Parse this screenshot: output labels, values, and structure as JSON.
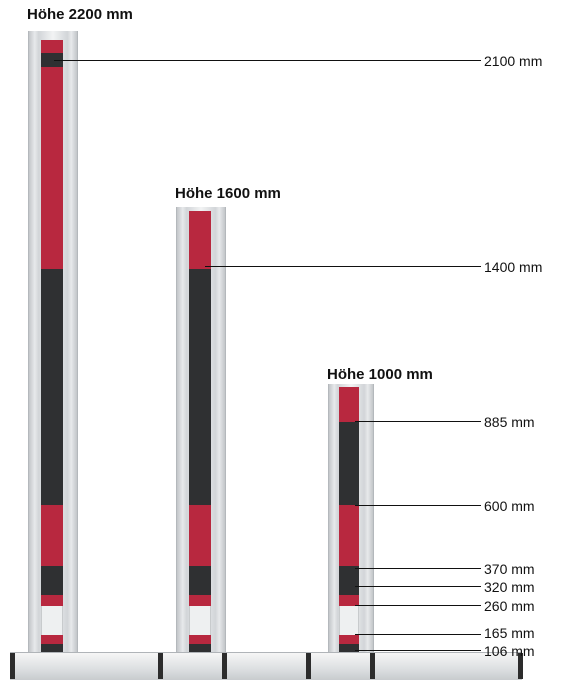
{
  "columns": [
    {
      "title": "Höhe 2200 mm"
    },
    {
      "title": "Höhe 1600 mm"
    },
    {
      "title": "Höhe 1000 mm"
    }
  ],
  "markers": [
    {
      "label": "2100 mm"
    },
    {
      "label": "1400 mm"
    },
    {
      "label": "885 mm"
    },
    {
      "label": "600 mm"
    },
    {
      "label": "370 mm"
    },
    {
      "label": "320 mm"
    },
    {
      "label": "260 mm"
    },
    {
      "label": "165 mm"
    },
    {
      "label": "106 mm"
    }
  ],
  "colors": {
    "red": "#b8283f",
    "black": "#2f3032",
    "frame": "#e7e9eb"
  }
}
